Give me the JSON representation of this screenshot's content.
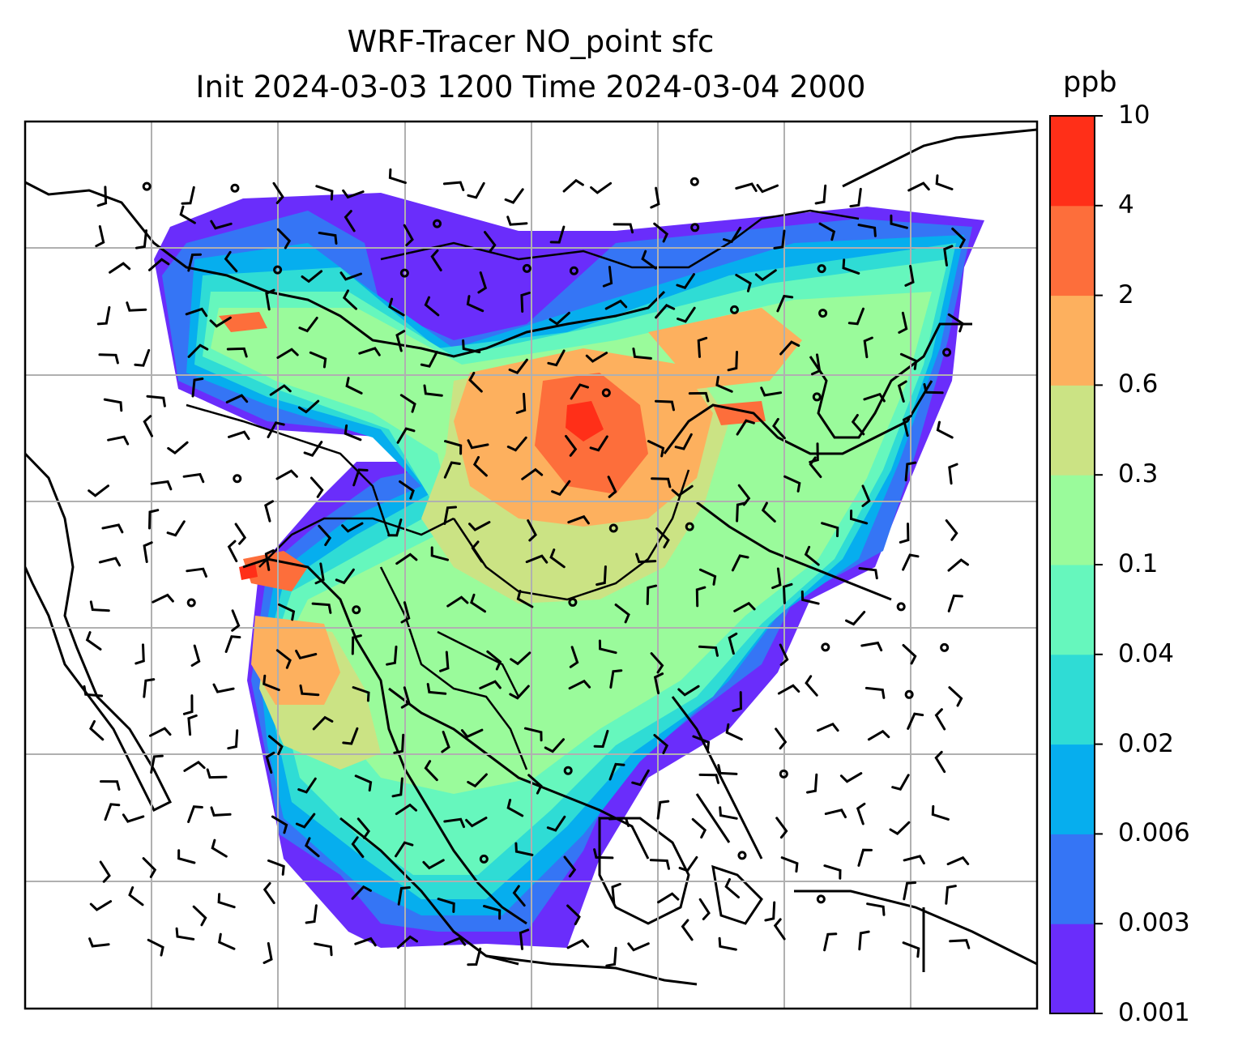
{
  "title": "WRF-Tracer NO_point sfc",
  "subtitle": "Init 2024-03-03 1200 Time 2024-03-04 2000",
  "colorbar": {
    "units": "ppb",
    "ticks": [
      "0.001",
      "0.003",
      "0.006",
      "0.02",
      "0.04",
      "0.1",
      "0.3",
      "0.6",
      "2",
      "4",
      "10"
    ],
    "colors": [
      "#6a2dfb",
      "#3575f5",
      "#06aeee",
      "#2fdcd5",
      "#66f7bd",
      "#9afb9b",
      "#cbe384",
      "#fdb05e",
      "#fd6e3b",
      "#ff2f18"
    ]
  },
  "map": {
    "gridlines": true,
    "land_outline_color": "#000000",
    "grid_color": "#b0b0b0"
  }
}
